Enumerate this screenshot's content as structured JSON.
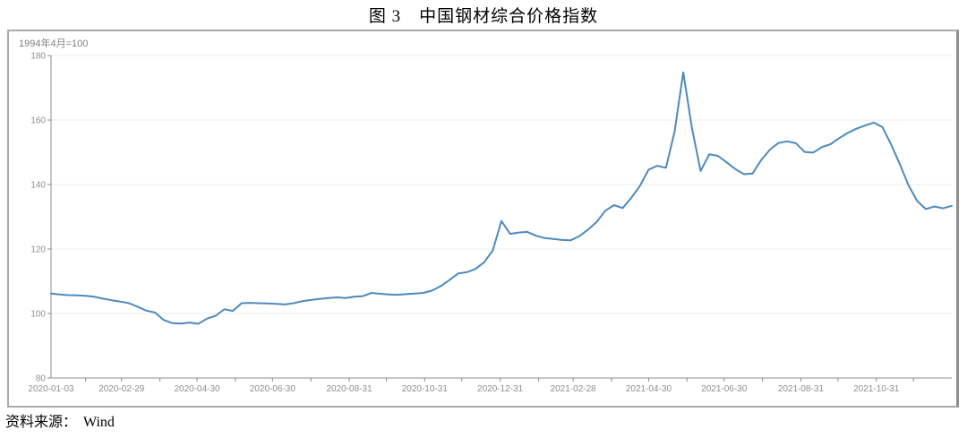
{
  "figure": {
    "title": "图 3　中国钢材综合价格指数",
    "source_label": "资料来源：",
    "source_value": "Wind"
  },
  "chart": {
    "subtitle": "1994年4月=100"
  },
  "chart_data": {
    "type": "line",
    "title": "图 3 中国钢材综合价格指数",
    "unit_note": "1994年4月=100",
    "series_name": "中国钢材综合价格指数",
    "grid": true,
    "legend": "none",
    "ylim": [
      80,
      180
    ],
    "yticks": [
      80,
      100,
      120,
      140,
      160,
      180
    ],
    "xtick_labels": [
      "2020-01-03",
      "2020-02-29",
      "2020-04-30",
      "2020-06-30",
      "2020-08-31",
      "2020-10-31",
      "2020-12-31",
      "2021-02-28",
      "2021-04-30",
      "2021-06-30",
      "2021-08-31",
      "2021-10-31"
    ],
    "line_color": "#4e8abc",
    "grid_color": "#ededed",
    "axis_color": "#8c8c8c",
    "tick_label_color": "#8e8e8e",
    "x": [
      "2020-01-03",
      "2020-01-10",
      "2020-01-17",
      "2020-01-24",
      "2020-01-31",
      "2020-02-07",
      "2020-02-14",
      "2020-02-21",
      "2020-02-28",
      "2020-03-06",
      "2020-03-13",
      "2020-03-20",
      "2020-03-27",
      "2020-04-03",
      "2020-04-10",
      "2020-04-17",
      "2020-04-24",
      "2020-05-01",
      "2020-05-08",
      "2020-05-15",
      "2020-05-22",
      "2020-05-29",
      "2020-06-05",
      "2020-06-12",
      "2020-06-19",
      "2020-06-26",
      "2020-07-03",
      "2020-07-10",
      "2020-07-17",
      "2020-07-24",
      "2020-07-31",
      "2020-08-07",
      "2020-08-14",
      "2020-08-21",
      "2020-08-28",
      "2020-09-04",
      "2020-09-11",
      "2020-09-18",
      "2020-09-25",
      "2020-10-02",
      "2020-10-09",
      "2020-10-16",
      "2020-10-23",
      "2020-10-30",
      "2020-11-06",
      "2020-11-13",
      "2020-11-20",
      "2020-11-27",
      "2020-12-04",
      "2020-12-11",
      "2020-12-18",
      "2020-12-25",
      "2021-01-01",
      "2021-01-08",
      "2021-01-15",
      "2021-01-22",
      "2021-01-29",
      "2021-02-05",
      "2021-02-12",
      "2021-02-19",
      "2021-02-26",
      "2021-03-05",
      "2021-03-12",
      "2021-03-19",
      "2021-03-26",
      "2021-04-02",
      "2021-04-09",
      "2021-04-16",
      "2021-04-23",
      "2021-04-30",
      "2021-05-07",
      "2021-05-14",
      "2021-05-21",
      "2021-05-28",
      "2021-06-04",
      "2021-06-11",
      "2021-06-18",
      "2021-06-25",
      "2021-07-02",
      "2021-07-09",
      "2021-07-16",
      "2021-07-23",
      "2021-07-30",
      "2021-08-06",
      "2021-08-13",
      "2021-08-20",
      "2021-08-27",
      "2021-09-03",
      "2021-09-10",
      "2021-09-17",
      "2021-09-24",
      "2021-10-01",
      "2021-10-08",
      "2021-10-15",
      "2021-10-22",
      "2021-10-29",
      "2021-11-05",
      "2021-11-12",
      "2021-11-19",
      "2021-11-26",
      "2021-12-03",
      "2021-12-10",
      "2021-12-17",
      "2021-12-24",
      "2021-12-31"
    ],
    "values": [
      106.2,
      105.9,
      105.7,
      105.6,
      105.5,
      105.2,
      104.6,
      104.1,
      103.7,
      103.2,
      102.1,
      100.9,
      100.3,
      98.0,
      97.0,
      96.9,
      97.2,
      96.8,
      98.4,
      99.3,
      101.3,
      100.8,
      103.2,
      103.3,
      103.2,
      103.1,
      103.0,
      102.8,
      103.2,
      103.8,
      104.2,
      104.5,
      104.8,
      105.0,
      104.8,
      105.2,
      105.4,
      106.4,
      106.1,
      105.9,
      105.8,
      106.0,
      106.2,
      106.4,
      107.1,
      108.5,
      110.4,
      112.4,
      112.8,
      113.8,
      115.9,
      119.5,
      128.7,
      124.7,
      125.1,
      125.3,
      124.1,
      123.4,
      123.1,
      122.8,
      122.7,
      124.0,
      126.0,
      128.4,
      131.9,
      133.6,
      132.7,
      135.9,
      139.6,
      144.6,
      145.8,
      145.2,
      156.5,
      174.8,
      157.5,
      144.2,
      149.4,
      148.9,
      146.9,
      144.8,
      143.2,
      143.4,
      147.6,
      150.8,
      152.9,
      153.4,
      152.8,
      150.1,
      149.9,
      151.6,
      152.5,
      154.4,
      156.0,
      157.3,
      158.3,
      159.2,
      157.8,
      152.4,
      146.3,
      139.8,
      134.9,
      132.4,
      133.2,
      132.6,
      133.4
    ]
  }
}
